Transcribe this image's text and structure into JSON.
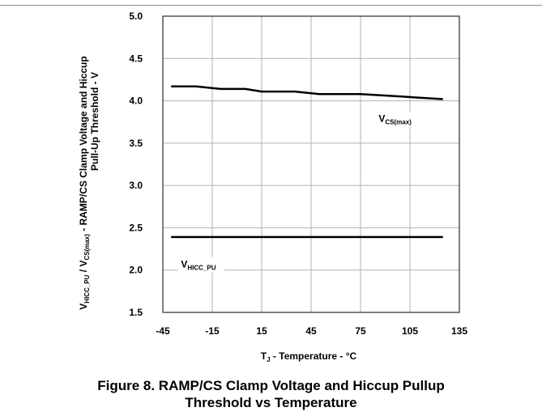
{
  "chart_data": {
    "type": "line",
    "xlim": [
      -45,
      135
    ],
    "ylim": [
      1.5,
      5.0
    ],
    "x_ticks": [
      "-45",
      "-15",
      "15",
      "45",
      "75",
      "105",
      "135"
    ],
    "y_ticks": [
      "1.5",
      "2.0",
      "2.5",
      "3.0",
      "3.5",
      "4.0",
      "4.5",
      "5.0"
    ],
    "grid": true,
    "xlabel": {
      "main": "T",
      "sub": "J",
      "rest": " - Temperature - °C"
    },
    "ylabel": {
      "line1": {
        "p1": "V",
        "s1": "HICC_PU",
        "p2": " / V",
        "s2": "CS(max)",
        "p3": " - RAMP/CS Clamp Voltage and Hiccup"
      },
      "line2": "Pull-Up Threshold - V"
    },
    "series": [
      {
        "label_main": "V",
        "label_sub": "CS(max)",
        "label_at": {
          "x": 86,
          "y": 3.75
        },
        "x": [
          -40,
          -25,
          -10,
          5,
          15,
          35,
          50,
          75,
          100,
          125
        ],
        "y": [
          4.17,
          4.17,
          4.14,
          4.14,
          4.11,
          4.11,
          4.08,
          4.08,
          4.05,
          4.02
        ]
      },
      {
        "label_main": "V",
        "label_sub": "HICC_PU",
        "label_at": {
          "x": -34,
          "y": 2.03
        },
        "x": [
          -40,
          125
        ],
        "y": [
          2.39,
          2.39
        ]
      }
    ]
  },
  "caption": {
    "line1": "Figure 8. RAMP/CS Clamp Voltage and Hiccup Pullup",
    "line2": "Threshold vs Temperature"
  }
}
